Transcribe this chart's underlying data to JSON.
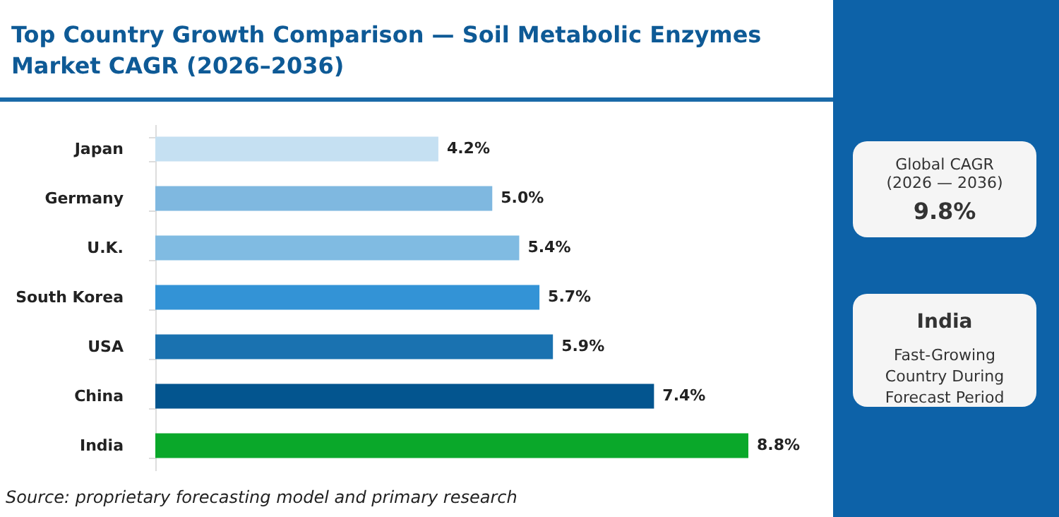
{
  "chart_data": {
    "type": "bar",
    "orientation": "horizontal",
    "title": "Top Country Growth Comparison — Soil Metabolic Enzymes Market CAGR (2026–2036)",
    "categories": [
      "Japan",
      "Germany",
      "U.K.",
      "South Korea",
      "USA",
      "China",
      "India"
    ],
    "values": [
      4.2,
      5.0,
      5.4,
      5.7,
      5.9,
      7.4,
      8.8
    ],
    "value_labels": [
      "4.2%",
      "5.0%",
      "5.4%",
      "5.7%",
      "5.9%",
      "7.4%",
      "8.8%"
    ],
    "colors": [
      "#c5e0f2",
      "#7fb8e0",
      "#80bbe2",
      "#3393d6",
      "#1a72b0",
      "#03558f",
      "#0aa82a"
    ],
    "legend": false,
    "annotations": [
      "Global CAGR",
      "(2026 — 2036)",
      "9.8%",
      "India",
      "Fast-Growing Country During Forecast Period",
      "Source: proprietary forecasting model and primary research"
    ]
  }
}
